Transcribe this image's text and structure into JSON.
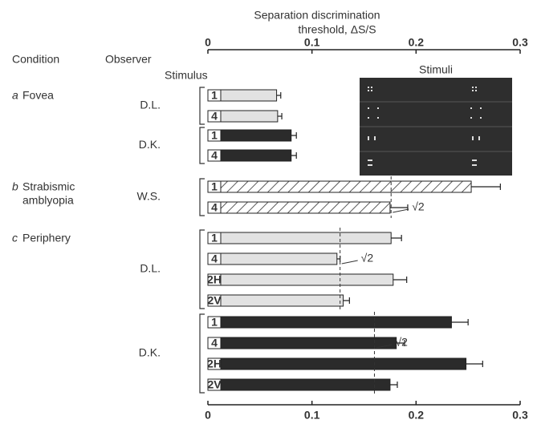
{
  "chart_data": {
    "type": "hbar-groups",
    "title": [
      "Separation discrimination",
      "threshold,  ΔS/S"
    ],
    "headers": {
      "condition": "Condition",
      "observer": "Observer",
      "stimulus": "Stimulus",
      "inset": "Stimuli"
    },
    "xlim": [
      0,
      0.3
    ],
    "xticks": [
      0,
      0.1,
      0.2,
      0.3
    ],
    "groups": [
      {
        "letter": "a",
        "condition": [
          "Fovea"
        ],
        "observers": [
          {
            "name": "D.L.",
            "color": "#e2e2e2",
            "stimuli": [
              "1",
              "4"
            ],
            "values": [
              0.066,
              0.067
            ],
            "errors": [
              0.004,
              0.004
            ]
          },
          {
            "name": "D.K.",
            "color": "#2b2b2b",
            "stimuli": [
              "1",
              "4"
            ],
            "values": [
              0.08,
              0.08
            ],
            "errors": [
              0.005,
              0.005
            ]
          }
        ]
      },
      {
        "letter": "b",
        "condition": [
          "Strabismic",
          "amblyopia"
        ],
        "observers": [
          {
            "name": "W.S.",
            "color": "#ffffff",
            "hatch": true,
            "stimuli": [
              "1",
              "4"
            ],
            "values": [
              0.253,
              0.175
            ],
            "errors": [
              0.028,
              0.017
            ],
            "reference": {
              "value": 0.176,
              "label": "√2"
            }
          }
        ]
      },
      {
        "letter": "c",
        "condition": [
          "Periphery"
        ],
        "observers": [
          {
            "name": "D.L.",
            "color": "#e2e2e2",
            "stimuli": [
              "1",
              "4",
              "2H",
              "2V"
            ],
            "values": [
              0.176,
              0.124,
              0.178,
              0.13
            ],
            "errors": [
              0.01,
              0.003,
              0.013,
              0.006
            ],
            "reference": {
              "value": 0.127,
              "label": "√2"
            }
          },
          {
            "name": "D.K.",
            "color": "#2b2b2b",
            "stimuli": [
              "1",
              "4",
              "2H",
              "2V"
            ],
            "values": [
              0.234,
              0.181,
              0.248,
              0.175
            ],
            "errors": [
              0.016,
              0.008,
              0.016,
              0.007
            ],
            "reference": {
              "value": 0.16,
              "label": "√2"
            }
          }
        ]
      }
    ]
  }
}
